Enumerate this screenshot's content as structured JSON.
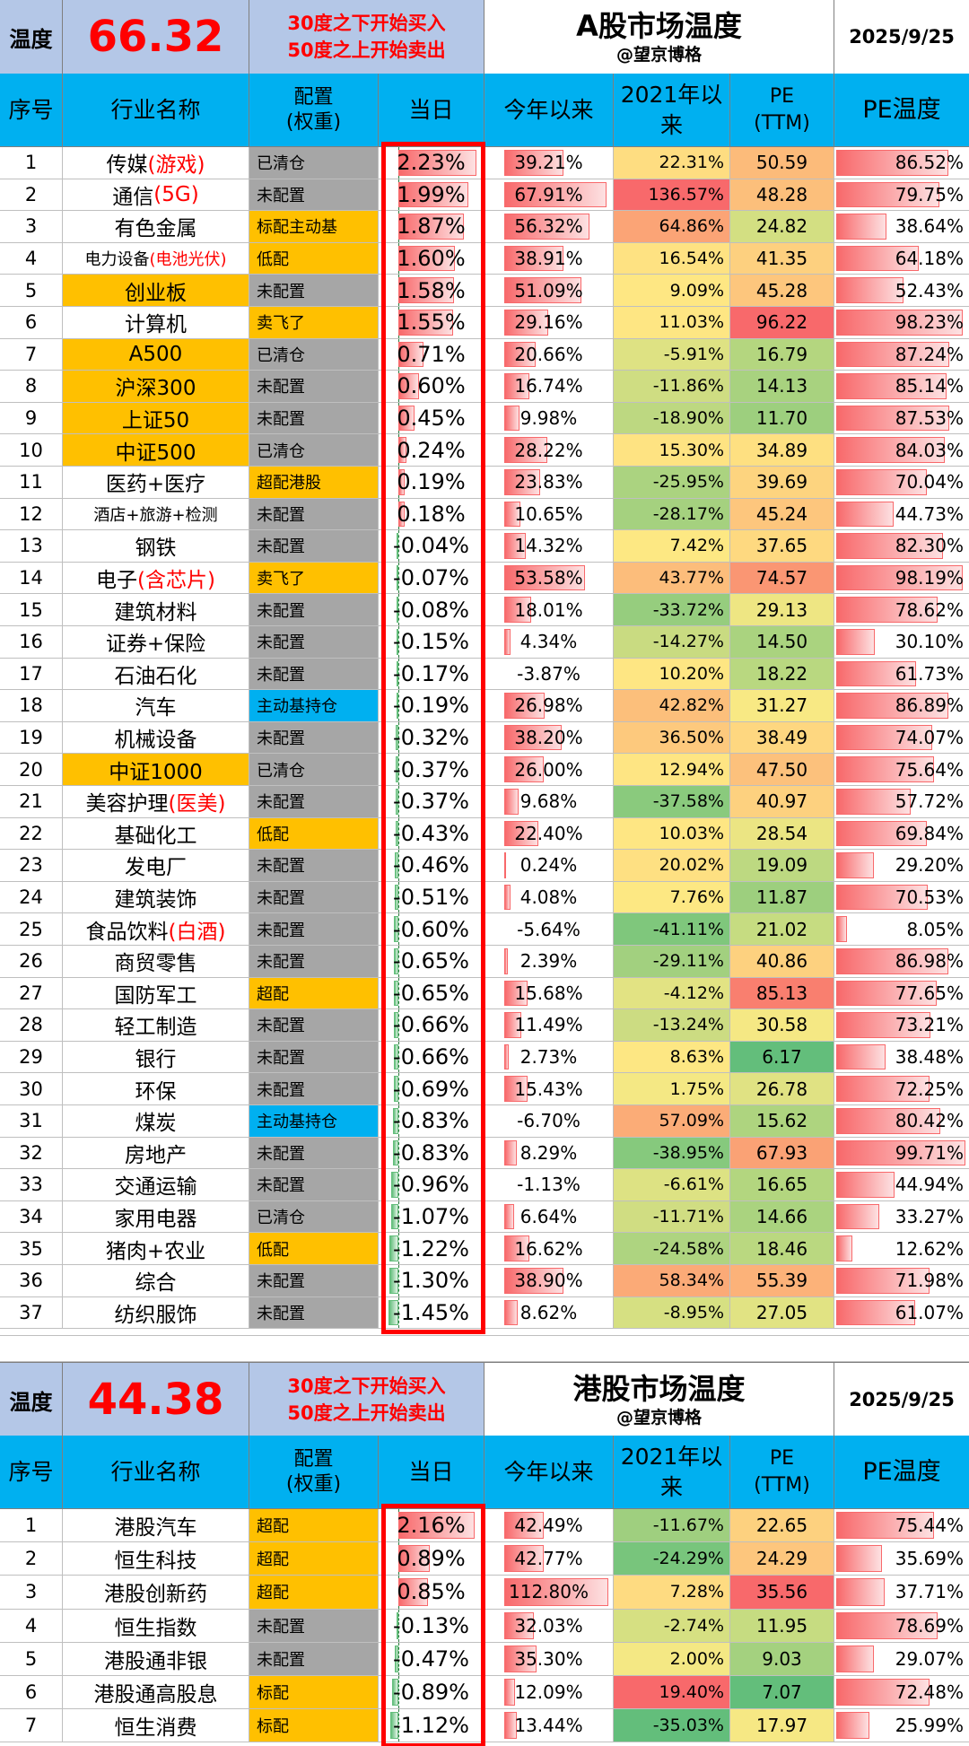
{
  "colors": {
    "header_blue": "#00b0f0",
    "temp_box": "#b4c7e7",
    "cfg_gray": "#a6a6a6",
    "cfg_orange": "#ffc000",
    "cfg_blue": "#00b0f0",
    "red_text": "#ff0000",
    "bar_red": "#f8696b",
    "bar_green": "#63be7b",
    "highlight": "#ff0000"
  },
  "columns": {
    "idx": "序号",
    "name": "行业名称",
    "cfg_line1": "配置",
    "cfg_line2": "(权重)",
    "day": "当日",
    "ytd": "今年以来",
    "since_line1": "2021年以",
    "since_line2": "来",
    "pe_line1": "PE",
    "pe_line2": "(TTM)",
    "pet": "PE温度"
  },
  "a_share": {
    "temp_label": "温度",
    "temp_value": "66.32",
    "rule_buy": "30度之下开始买入",
    "rule_sell": "50度之上开始卖出",
    "title": "A股市场温度",
    "subtitle": "@望京博格",
    "date": "2025/9/25",
    "rows": [
      {
        "idx": "1",
        "name": "传媒",
        "name_red": "(游戏)",
        "cfg": "已清仓",
        "cfg_color": "gray",
        "day": "2.23%",
        "day_val": 2.23,
        "ytd": "39.21%",
        "ytd_val": 39.21,
        "since": "22.31%",
        "since_color": "#fedd81",
        "pe": "50.59",
        "pe_color": "#fcbb7a",
        "pet": "86.52%",
        "pet_val": 86.52
      },
      {
        "idx": "2",
        "name": "通信",
        "name_red": "(5G)",
        "cfg": "未配置",
        "cfg_color": "gray",
        "day": "1.99%",
        "day_val": 1.99,
        "ytd": "67.91%",
        "ytd_val": 67.91,
        "since": "136.57%",
        "since_color": "#f8696b",
        "pe": "48.28",
        "pe_color": "#fcbf7b",
        "pet": "79.75%",
        "pet_val": 79.75
      },
      {
        "idx": "3",
        "name": "有色金属",
        "name_red": "",
        "cfg": "标配主动基",
        "cfg_color": "orange",
        "day": "1.87%",
        "day_val": 1.87,
        "ytd": "56.32%",
        "ytd_val": 56.32,
        "since": "64.86%",
        "since_color": "#fba476",
        "pe": "24.82",
        "pe_color": "#d3df82",
        "pet": "38.64%",
        "pet_val": 38.64
      },
      {
        "idx": "4",
        "name": "电力设备",
        "name_red": "(电池光伏)",
        "small": true,
        "cfg": "低配",
        "cfg_color": "orange",
        "day": "1.60%",
        "day_val": 1.6,
        "ytd": "38.91%",
        "ytd_val": 38.91,
        "since": "16.54%",
        "since_color": "#fee282",
        "pe": "41.35",
        "pe_color": "#fdd07f",
        "pet": "64.18%",
        "pet_val": 64.18
      },
      {
        "idx": "5",
        "name": "创业板",
        "name_red": "",
        "name_bg": "#ffc000",
        "cfg": "未配置",
        "cfg_color": "gray",
        "day": "1.58%",
        "day_val": 1.58,
        "ytd": "51.09%",
        "ytd_val": 51.09,
        "since": "9.09%",
        "since_color": "#fee783",
        "pe": "45.28",
        "pe_color": "#fdc67d",
        "pet": "52.43%",
        "pet_val": 52.43
      },
      {
        "idx": "6",
        "name": "计算机",
        "name_red": "",
        "cfg": "卖飞了",
        "cfg_color": "orange",
        "day": "1.55%",
        "day_val": 1.55,
        "ytd": "29.16%",
        "ytd_val": 29.16,
        "since": "11.03%",
        "since_color": "#fee683",
        "pe": "96.22",
        "pe_color": "#f8696b",
        "pet": "98.23%",
        "pet_val": 98.23
      },
      {
        "idx": "7",
        "name": "A500",
        "name_red": "",
        "name_bg": "#ffc000",
        "cfg": "已清仓",
        "cfg_color": "gray",
        "day": "0.71%",
        "day_val": 0.71,
        "ytd": "20.66%",
        "ytd_val": 20.66,
        "since": "-5.91%",
        "since_color": "#dee283",
        "pe": "16.79",
        "pe_color": "#b4d67f",
        "pet": "87.24%",
        "pet_val": 87.24
      },
      {
        "idx": "8",
        "name": "沪深300",
        "name_red": "",
        "name_bg": "#ffc000",
        "cfg": "未配置",
        "cfg_color": "gray",
        "day": "0.60%",
        "day_val": 0.6,
        "ytd": "16.74%",
        "ytd_val": 16.74,
        "since": "-11.86%",
        "since_color": "#cfdd82",
        "pe": "14.13",
        "pe_color": "#a8d27f",
        "pet": "85.14%",
        "pet_val": 85.14
      },
      {
        "idx": "9",
        "name": "上证50",
        "name_red": "",
        "name_bg": "#ffc000",
        "cfg": "未配置",
        "cfg_color": "gray",
        "day": "0.45%",
        "day_val": 0.45,
        "ytd": "9.98%",
        "ytd_val": 9.98,
        "since": "-18.90%",
        "since_color": "#bdd881",
        "pe": "11.70",
        "pe_color": "#9dcf7e",
        "pet": "87.53%",
        "pet_val": 87.53
      },
      {
        "idx": "10",
        "name": "中证500",
        "name_red": "",
        "name_bg": "#ffc000",
        "cfg": "已清仓",
        "cfg_color": "gray",
        "day": "0.24%",
        "day_val": 0.24,
        "ytd": "28.22%",
        "ytd_val": 28.22,
        "since": "15.30%",
        "since_color": "#fee382",
        "pe": "34.89",
        "pe_color": "#fee081",
        "pet": "84.03%",
        "pet_val": 84.03
      },
      {
        "idx": "11",
        "name": "医药+医疗",
        "name_red": "",
        "cfg": "超配港股",
        "cfg_color": "orange",
        "day": "0.19%",
        "day_val": 0.19,
        "ytd": "23.83%",
        "ytd_val": 23.83,
        "since": "-25.95%",
        "since_color": "#abd380",
        "pe": "39.69",
        "pe_color": "#fdd47f",
        "pet": "70.04%",
        "pet_val": 70.04
      },
      {
        "idx": "12",
        "name": "酒店+旅游+检测",
        "name_red": "",
        "small": true,
        "cfg": "未配置",
        "cfg_color": "gray",
        "day": "0.18%",
        "day_val": 0.18,
        "ytd": "10.65%",
        "ytd_val": 10.65,
        "since": "-28.17%",
        "since_color": "#a5d17f",
        "pe": "45.24",
        "pe_color": "#fdc67d",
        "pet": "44.73%",
        "pet_val": 44.73
      },
      {
        "idx": "13",
        "name": "钢铁",
        "name_red": "",
        "cfg": "未配置",
        "cfg_color": "gray",
        "day": "-0.04%",
        "day_val": -0.04,
        "ytd": "14.32%",
        "ytd_val": 14.32,
        "since": "7.42%",
        "since_color": "#fde883",
        "pe": "37.65",
        "pe_color": "#fed980",
        "pet": "82.30%",
        "pet_val": 82.3
      },
      {
        "idx": "14",
        "name": "电子",
        "name_red": "(含芯片)",
        "cfg": "卖飞了",
        "cfg_color": "orange",
        "day": "-0.07%",
        "day_val": -0.07,
        "ytd": "53.58%",
        "ytd_val": 53.58,
        "since": "43.77%",
        "since_color": "#fcbd7b",
        "pe": "74.57",
        "pe_color": "#fa9673",
        "pet": "98.19%",
        "pet_val": 98.19
      },
      {
        "idx": "15",
        "name": "建筑材料",
        "name_red": "",
        "cfg": "未配置",
        "cfg_color": "gray",
        "day": "-0.08%",
        "day_val": -0.08,
        "ytd": "18.01%",
        "ytd_val": 18.01,
        "since": "-33.72%",
        "since_color": "#96cd7e",
        "pe": "29.13",
        "pe_color": "#eee683",
        "pet": "78.62%",
        "pet_val": 78.62
      },
      {
        "idx": "16",
        "name": "证券+保险",
        "name_red": "",
        "cfg": "未配置",
        "cfg_color": "gray",
        "day": "-0.15%",
        "day_val": -0.15,
        "ytd": "4.34%",
        "ytd_val": 4.34,
        "since": "-14.27%",
        "since_color": "#c9db81",
        "pe": "14.50",
        "pe_color": "#aad37f",
        "pet": "30.10%",
        "pet_val": 30.1
      },
      {
        "idx": "17",
        "name": "石油石化",
        "name_red": "",
        "cfg": "未配置",
        "cfg_color": "gray",
        "day": "-0.17%",
        "day_val": -0.17,
        "ytd": "-3.87%",
        "ytd_val": -3.87,
        "since": "10.20%",
        "since_color": "#fee683",
        "pe": "18.22",
        "pe_color": "#b9d880",
        "pet": "61.73%",
        "pet_val": 61.73
      },
      {
        "idx": "18",
        "name": "汽车",
        "name_red": "",
        "cfg": "主动基持仓",
        "cfg_color": "blue",
        "day": "-0.19%",
        "day_val": -0.19,
        "ytd": "26.98%",
        "ytd_val": 26.98,
        "since": "42.82%",
        "since_color": "#fcbf7b",
        "pe": "31.27",
        "pe_color": "#f8e984",
        "pet": "86.89%",
        "pet_val": 86.89
      },
      {
        "idx": "19",
        "name": "机械设备",
        "name_red": "",
        "cfg": "未配置",
        "cfg_color": "gray",
        "day": "-0.32%",
        "day_val": -0.32,
        "ytd": "38.20%",
        "ytd_val": 38.2,
        "since": "36.50%",
        "since_color": "#fdc97d",
        "pe": "38.49",
        "pe_color": "#fed780",
        "pet": "74.07%",
        "pet_val": 74.07
      },
      {
        "idx": "20",
        "name": "中证1000",
        "name_red": "",
        "name_bg": "#ffc000",
        "cfg": "已清仓",
        "cfg_color": "gray",
        "day": "-0.37%",
        "day_val": -0.37,
        "ytd": "26.00%",
        "ytd_val": 26.0,
        "since": "12.94%",
        "since_color": "#fee583",
        "pe": "47.50",
        "pe_color": "#fcc17c",
        "pet": "75.64%",
        "pet_val": 75.64
      },
      {
        "idx": "21",
        "name": "美容护理",
        "name_red": "(医美)",
        "cfg": "未配置",
        "cfg_color": "gray",
        "day": "-0.37%",
        "day_val": -0.37,
        "ytd": "9.68%",
        "ytd_val": 9.68,
        "since": "-37.58%",
        "since_color": "#8aca7d",
        "pe": "40.97",
        "pe_color": "#fdd17f",
        "pet": "57.72%",
        "pet_val": 57.72
      },
      {
        "idx": "22",
        "name": "基础化工",
        "name_red": "",
        "cfg": "低配",
        "cfg_color": "orange",
        "day": "-0.43%",
        "day_val": -0.43,
        "ytd": "22.40%",
        "ytd_val": 22.4,
        "since": "10.03%",
        "since_color": "#fee683",
        "pe": "28.54",
        "pe_color": "#ebe583",
        "pet": "69.84%",
        "pet_val": 69.84
      },
      {
        "idx": "23",
        "name": "发电厂",
        "name_red": "",
        "cfg": "未配置",
        "cfg_color": "gray",
        "day": "-0.46%",
        "day_val": -0.46,
        "ytd": "0.24%",
        "ytd_val": 0.24,
        "since": "20.02%",
        "since_color": "#fee082",
        "pe": "19.09",
        "pe_color": "#bdd981",
        "pet": "29.20%",
        "pet_val": 29.2
      },
      {
        "idx": "24",
        "name": "建筑装饰",
        "name_red": "",
        "cfg": "未配置",
        "cfg_color": "gray",
        "day": "-0.51%",
        "day_val": -0.51,
        "ytd": "4.08%",
        "ytd_val": 4.08,
        "since": "7.76%",
        "since_color": "#fde883",
        "pe": "11.87",
        "pe_color": "#9dcf7e",
        "pet": "70.53%",
        "pet_val": 70.53
      },
      {
        "idx": "25",
        "name": "食品饮料",
        "name_red": "(白酒)",
        "cfg": "未配置",
        "cfg_color": "gray",
        "day": "-0.60%",
        "day_val": -0.6,
        "ytd": "-5.64%",
        "ytd_val": -5.64,
        "since": "-41.11%",
        "since_color": "#7fc77c",
        "pe": "21.02",
        "pe_color": "#c6dc81",
        "pet": "8.05%",
        "pet_val": 8.05
      },
      {
        "idx": "26",
        "name": "商贸零售",
        "name_red": "",
        "cfg": "未配置",
        "cfg_color": "gray",
        "day": "-0.65%",
        "day_val": -0.65,
        "ytd": "2.39%",
        "ytd_val": 2.39,
        "since": "-29.11%",
        "since_color": "#a2d07f",
        "pe": "40.86",
        "pe_color": "#fdd17f",
        "pet": "86.98%",
        "pet_val": 86.98
      },
      {
        "idx": "27",
        "name": "国防军工",
        "name_red": "",
        "cfg": "超配",
        "cfg_color": "orange",
        "day": "-0.65%",
        "day_val": -0.65,
        "ytd": "15.68%",
        "ytd_val": 15.68,
        "since": "-4.12%",
        "since_color": "#e2e383",
        "pe": "85.13",
        "pe_color": "#f97f6f",
        "pet": "77.65%",
        "pet_val": 77.65
      },
      {
        "idx": "28",
        "name": "轻工制造",
        "name_red": "",
        "cfg": "未配置",
        "cfg_color": "gray",
        "day": "-0.66%",
        "day_val": -0.66,
        "ytd": "11.49%",
        "ytd_val": 11.49,
        "since": "-13.24%",
        "since_color": "#ccdc82",
        "pe": "30.58",
        "pe_color": "#f5e884",
        "pet": "73.21%",
        "pet_val": 73.21
      },
      {
        "idx": "29",
        "name": "银行",
        "name_red": "",
        "cfg": "未配置",
        "cfg_color": "gray",
        "day": "-0.66%",
        "day_val": -0.66,
        "ytd": "2.73%",
        "ytd_val": 2.73,
        "since": "8.63%",
        "since_color": "#fde783",
        "pe": "6.17",
        "pe_color": "#63be7b",
        "pet": "38.48%",
        "pet_val": 38.48
      },
      {
        "idx": "30",
        "name": "环保",
        "name_red": "",
        "cfg": "未配置",
        "cfg_color": "gray",
        "day": "-0.69%",
        "day_val": -0.69,
        "ytd": "15.43%",
        "ytd_val": 15.43,
        "since": "1.75%",
        "since_color": "#f4e884",
        "pe": "26.78",
        "pe_color": "#e0e283",
        "pet": "72.25%",
        "pet_val": 72.25
      },
      {
        "idx": "31",
        "name": "煤炭",
        "name_red": "",
        "cfg": "主动基持仓",
        "cfg_color": "blue",
        "day": "-0.83%",
        "day_val": -0.83,
        "ytd": "-6.70%",
        "ytd_val": -6.7,
        "since": "57.09%",
        "since_color": "#fbac77",
        "pe": "15.62",
        "pe_color": "#aed47f",
        "pet": "80.42%",
        "pet_val": 80.42
      },
      {
        "idx": "32",
        "name": "房地产",
        "name_red": "",
        "cfg": "未配置",
        "cfg_color": "gray",
        "day": "-0.83%",
        "day_val": -0.83,
        "ytd": "8.29%",
        "ytd_val": 8.29,
        "since": "-38.95%",
        "since_color": "#86c97d",
        "pe": "67.93",
        "pe_color": "#faa275",
        "pet": "99.71%",
        "pet_val": 99.71
      },
      {
        "idx": "33",
        "name": "交通运输",
        "name_red": "",
        "cfg": "未配置",
        "cfg_color": "gray",
        "day": "-0.96%",
        "day_val": -0.96,
        "ytd": "-1.13%",
        "ytd_val": -1.13,
        "since": "-6.61%",
        "since_color": "#dde283",
        "pe": "16.65",
        "pe_color": "#b3d67f",
        "pet": "44.94%",
        "pet_val": 44.94
      },
      {
        "idx": "34",
        "name": "家用电器",
        "name_red": "",
        "cfg": "已清仓",
        "cfg_color": "gray",
        "day": "-1.07%",
        "day_val": -1.07,
        "ytd": "6.64%",
        "ytd_val": 6.64,
        "since": "-11.71%",
        "since_color": "#d0dd82",
        "pe": "14.66",
        "pe_color": "#aad37f",
        "pet": "33.27%",
        "pet_val": 33.27
      },
      {
        "idx": "35",
        "name": "猪肉+农业",
        "name_red": "",
        "cfg": "低配",
        "cfg_color": "orange",
        "day": "-1.22%",
        "day_val": -1.22,
        "ytd": "16.62%",
        "ytd_val": 16.62,
        "since": "-24.58%",
        "since_color": "#aed480",
        "pe": "18.46",
        "pe_color": "#bad880",
        "pet": "12.62%",
        "pet_val": 12.62
      },
      {
        "idx": "36",
        "name": "综合",
        "name_red": "",
        "cfg": "未配置",
        "cfg_color": "gray",
        "day": "-1.30%",
        "day_val": -1.3,
        "ytd": "38.90%",
        "ytd_val": 38.9,
        "since": "58.34%",
        "since_color": "#fbaa77",
        "pe": "55.39",
        "pe_color": "#fcb279",
        "pet": "71.98%",
        "pet_val": 71.98
      },
      {
        "idx": "37",
        "name": "纺织服饰",
        "name_red": "",
        "cfg": "未配置",
        "cfg_color": "gray",
        "day": "-1.45%",
        "day_val": -1.45,
        "ytd": "8.62%",
        "ytd_val": 8.62,
        "since": "-8.95%",
        "since_color": "#d6e082",
        "pe": "27.05",
        "pe_color": "#e1e383",
        "pet": "61.07%",
        "pet_val": 61.07
      }
    ]
  },
  "hk_share": {
    "temp_label": "温度",
    "temp_value": "44.38",
    "rule_buy": "30度之下开始买入",
    "rule_sell": "50度之上开始卖出",
    "title": "港股市场温度",
    "subtitle": "@望京博格",
    "date": "2025/9/25",
    "rows": [
      {
        "idx": "1",
        "name": "港股汽车",
        "name_red": "",
        "cfg": "超配",
        "cfg_color": "orange",
        "day": "2.16%",
        "day_val": 2.16,
        "ytd": "42.49%",
        "ytd_val": 42.49,
        "since": "-11.67%",
        "since_color": "#9fcf7f",
        "pe": "22.65",
        "pe_color": "#fdd17f",
        "pet": "75.44%",
        "pet_val": 75.44
      },
      {
        "idx": "2",
        "name": "恒生科技",
        "name_red": "",
        "cfg": "超配",
        "cfg_color": "orange",
        "day": "0.89%",
        "day_val": 0.89,
        "ytd": "42.77%",
        "ytd_val": 42.77,
        "since": "-24.29%",
        "since_color": "#78c57c",
        "pe": "24.29",
        "pe_color": "#fdc67d",
        "pet": "35.69%",
        "pet_val": 35.69
      },
      {
        "idx": "3",
        "name": "港股创新药",
        "name_red": "",
        "cfg": "超配",
        "cfg_color": "orange",
        "day": "0.85%",
        "day_val": 0.85,
        "ytd": "112.80%",
        "ytd_val": 112.8,
        "since": "7.28%",
        "since_color": "#fedb81",
        "pe": "35.56",
        "pe_color": "#f8696b",
        "pet": "37.71%",
        "pet_val": 37.71,
        "tri": true
      },
      {
        "idx": "4",
        "name": "恒生指数",
        "name_red": "",
        "cfg": "未配置",
        "cfg_color": "gray",
        "day": "-0.13%",
        "day_val": -0.13,
        "ytd": "32.03%",
        "ytd_val": 32.03,
        "since": "-2.74%",
        "since_color": "#d6e082",
        "pe": "11.95",
        "pe_color": "#c6dc81",
        "pet": "78.69%",
        "pet_val": 78.69
      },
      {
        "idx": "5",
        "name": "港股通非银",
        "name_red": "",
        "cfg": "未配置",
        "cfg_color": "gray",
        "day": "-0.47%",
        "day_val": -0.47,
        "ytd": "35.30%",
        "ytd_val": 35.3,
        "since": "2.00%",
        "since_color": "#f4e884",
        "pe": "9.03",
        "pe_color": "#a4d17f",
        "pet": "29.07%",
        "pet_val": 29.07
      },
      {
        "idx": "6",
        "name": "港股通高股息",
        "name_red": "",
        "cfg": "标配",
        "cfg_color": "orange",
        "day": "-0.89%",
        "day_val": -0.89,
        "ytd": "12.09%",
        "ytd_val": 12.09,
        "since": "19.40%",
        "since_color": "#f8696b",
        "pe": "7.07",
        "pe_color": "#63be7b",
        "pet": "72.48%",
        "pet_val": 72.48
      },
      {
        "idx": "7",
        "name": "恒生消费",
        "name_red": "",
        "cfg": "标配",
        "cfg_color": "orange",
        "day": "-1.12%",
        "day_val": -1.12,
        "ytd": "13.44%",
        "ytd_val": 13.44,
        "since": "-35.03%",
        "since_color": "#63be7b",
        "pe": "17.97",
        "pe_color": "#f6e884",
        "pet": "25.99%",
        "pet_val": 25.99
      }
    ]
  }
}
